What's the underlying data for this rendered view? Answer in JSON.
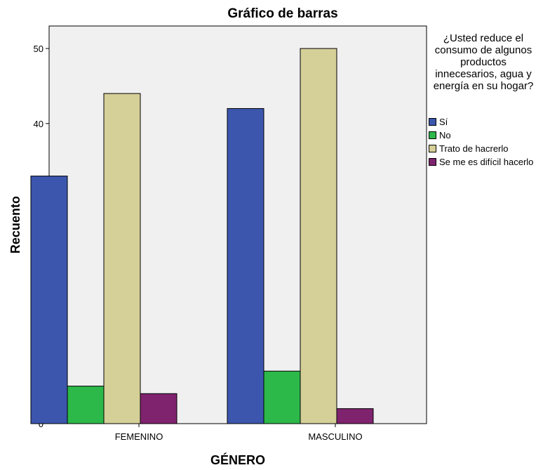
{
  "chart_data": {
    "type": "bar",
    "title": "Gráfico de barras",
    "xlabel": "GÉNERO",
    "ylabel": "Recuento",
    "categories": [
      "FEMENINO",
      "MASCULINO"
    ],
    "ylim": [
      0,
      53
    ],
    "yticks": [
      0,
      10,
      20,
      30,
      40,
      50
    ],
    "grid": false,
    "legend_placement": "right",
    "legend_title": "¿Usted reduce el consumo de algunos productos innecesarios, agua y energía en su hogar?",
    "series": [
      {
        "name": "Sí",
        "color": "#3c56ae",
        "values": [
          33,
          42
        ]
      },
      {
        "name": "No",
        "color": "#2db84a",
        "values": [
          5,
          7
        ]
      },
      {
        "name": "Trato de hacrerlo",
        "color": "#d5cf98",
        "values": [
          44,
          50
        ]
      },
      {
        "name": "Se me es difícil hacerlo",
        "color": "#80236f",
        "values": [
          4,
          2
        ]
      }
    ],
    "plot_background": "#f0f0f0"
  }
}
